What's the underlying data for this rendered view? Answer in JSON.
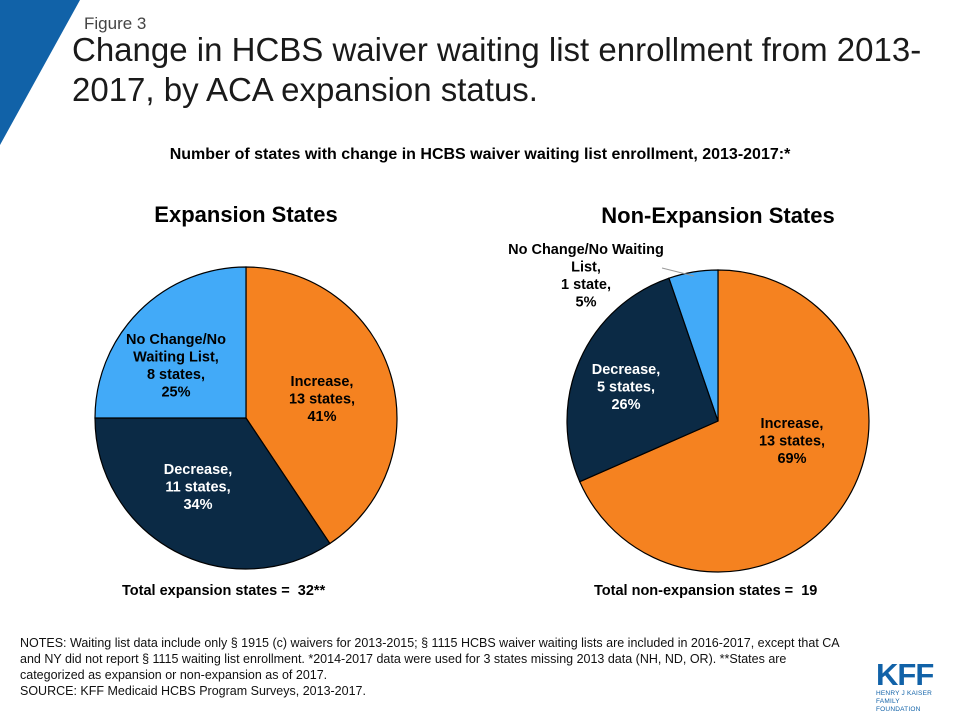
{
  "header": {
    "figure_label": "Figure 3",
    "title": "Change in HCBS waiver waiting list enrollment from 2013-2017, by ACA expansion status.",
    "subtitle": "Number of states with change in HCBS waiver waiting list enrollment, 2013-2017:*"
  },
  "colors": {
    "accent": "#1162a8",
    "increase": "#f58220",
    "decrease": "#0b2a45",
    "no_change": "#42aaf8"
  },
  "chart_data": [
    {
      "type": "pie",
      "title": "Expansion States",
      "slices": [
        {
          "name": "Increase",
          "value": 13,
          "percent": 41,
          "label": [
            "Increase,",
            "13 states,",
            "41%"
          ]
        },
        {
          "name": "Decrease",
          "value": 11,
          "percent": 34,
          "label": [
            "Decrease,",
            "11 states,",
            "34%"
          ]
        },
        {
          "name": "No Change/No Waiting List",
          "value": 8,
          "percent": 25,
          "label": [
            "No Change/No",
            "Waiting List,",
            "8 states,",
            "25%"
          ]
        }
      ],
      "total_label": "Total expansion states =  32**"
    },
    {
      "type": "pie",
      "title": "Non-Expansion States",
      "slices": [
        {
          "name": "Increase",
          "value": 13,
          "percent": 69,
          "label": [
            "Increase,",
            "13 states,",
            "69%"
          ]
        },
        {
          "name": "Decrease",
          "value": 5,
          "percent": 26,
          "label": [
            "Decrease,",
            "5 states,",
            "26%"
          ]
        },
        {
          "name": "No Change/No Waiting List",
          "value": 1,
          "percent": 5,
          "label": [
            "No Change/No Waiting",
            "List,",
            "1 state,",
            "5%"
          ]
        }
      ],
      "total_label": "Total non-expansion states =  19"
    }
  ],
  "footer": {
    "notes": "NOTES: Waiting list data include only § 1915 (c) waivers for 2013-2015; § 1115 HCBS waiver waiting lists are included in 2016-2017, except that CA and NY did not report § 1115 waiting list enrollment. *2014-2017 data were used for 3 states missing 2013 data (NH, ND, OR). **States are categorized as expansion or non-expansion as of 2017.",
    "source": "SOURCE:  KFF Medicaid HCBS Program Surveys, 2013-2017."
  },
  "logo": {
    "main": "KFF",
    "sub_line1": "HENRY J KAISER",
    "sub_line2": "FAMILY FOUNDATION"
  }
}
